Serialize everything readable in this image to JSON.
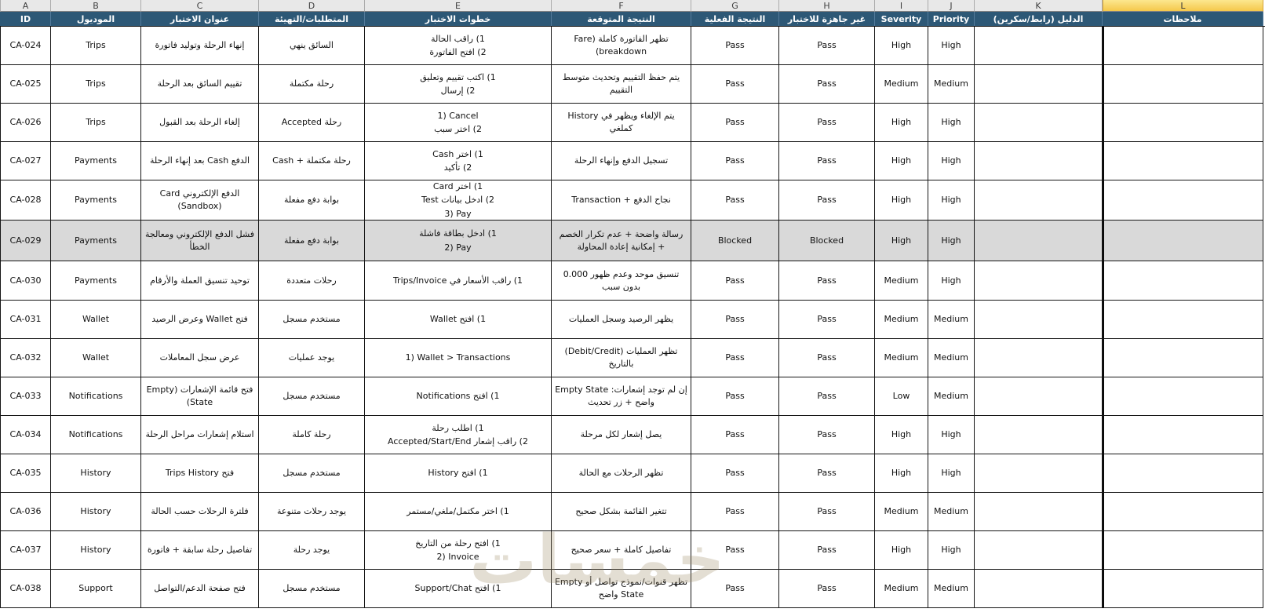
{
  "sheet": {
    "watermark": "خمسات",
    "selected_column_letter": "L",
    "column_letters": [
      "A",
      "B",
      "C",
      "D",
      "E",
      "F",
      "G",
      "H",
      "I",
      "J",
      "K",
      "L"
    ],
    "header_labels": [
      "ID",
      "الموديول",
      "عنوان الاختبار",
      "المتطلبات/التهيئة",
      "خطوات الاختبار",
      "النتيجة المتوقعة",
      "النتيجة الفعلية",
      "غير جاهزة للاختبار",
      "Severity",
      "Priority",
      "الدليل (رابط/سكرين)",
      "ملاحظات"
    ],
    "colors": {
      "header_bg": "#2D5876",
      "header_text": "#FFFFFF",
      "column_letters_bg": "#E8E8E8",
      "selected_column_bg_top": "#FCE78F",
      "selected_column_bg_bottom": "#F5C84B",
      "row_highlight_bg": "#D9D9D9",
      "grid_border": "#161616"
    },
    "rows": [
      {
        "id": "CA-024",
        "module": "Trips",
        "title": "إنهاء الرحلة وتوليد فاتورة",
        "setup": "السائق ينهي",
        "steps": [
          "1) راقب الحالة",
          "2) افتح الفاتورة"
        ],
        "expected": "تظهر الفاتورة كاملة (Fare breakdown)",
        "actual": "Pass",
        "readiness": "Pass",
        "severity": "High",
        "priority": "High",
        "evidence": "",
        "notes": "",
        "highlight": false
      },
      {
        "id": "CA-025",
        "module": "Trips",
        "title": "تقييم السائق بعد الرحلة",
        "setup": "رحلة مكتملة",
        "steps": [
          "1) اكتب تقييم وتعليق",
          "2) إرسال"
        ],
        "expected": "يتم حفظ التقييم وتحديث متوسط التقييم",
        "actual": "Pass",
        "readiness": "Pass",
        "severity": "Medium",
        "priority": "Medium",
        "evidence": "",
        "notes": "",
        "highlight": false
      },
      {
        "id": "CA-026",
        "module": "Trips",
        "title": "إلغاء الرحلة بعد القبول",
        "setup": "رحلة Accepted",
        "steps": [
          "1) Cancel",
          "2) اختر سبب"
        ],
        "expected": "يتم الإلغاء ويظهر في History كملغي",
        "actual": "Pass",
        "readiness": "Pass",
        "severity": "High",
        "priority": "High",
        "evidence": "",
        "notes": "",
        "highlight": false
      },
      {
        "id": "CA-027",
        "module": "Payments",
        "title": "الدفع Cash بعد إنهاء الرحلة",
        "setup": "رحلة مكتملة + Cash",
        "steps": [
          "1) اختر Cash",
          "2) تأكيد"
        ],
        "expected": "تسجيل الدفع وإنهاء الرحلة",
        "actual": "Pass",
        "readiness": "Pass",
        "severity": "High",
        "priority": "High",
        "evidence": "",
        "notes": "",
        "highlight": false
      },
      {
        "id": "CA-028",
        "module": "Payments",
        "title": "الدفع الإلكتروني Card (Sandbox)",
        "setup": "بوابة دفع مفعلة",
        "steps": [
          "1) اختر Card",
          "2) ادخل بيانات Test",
          "3) Pay"
        ],
        "expected": "نجاح الدفع + Transaction",
        "actual": "Pass",
        "readiness": "Pass",
        "severity": "High",
        "priority": "High",
        "evidence": "",
        "notes": "",
        "highlight": false
      },
      {
        "id": "CA-029",
        "module": "Payments",
        "title": "فشل الدفع الإلكتروني ومعالجة الخطأ",
        "setup": "بوابة دفع مفعلة",
        "steps": [
          "1) ادخل بطاقة فاشلة",
          "2) Pay"
        ],
        "expected": "رسالة واضحة + عدم تكرار الخصم + إمكانية إعادة المحاولة",
        "actual": "Blocked",
        "readiness": "Blocked",
        "severity": "High",
        "priority": "High",
        "evidence": "",
        "notes": "",
        "highlight": true
      },
      {
        "id": "CA-030",
        "module": "Payments",
        "title": "توحيد تنسيق العملة والأرقام",
        "setup": "رحلات متعددة",
        "steps": [
          "1) راقب الأسعار في Trips/Invoice"
        ],
        "expected": "تنسيق موحد وعدم ظهور 0.000 بدون سبب",
        "actual": "Pass",
        "readiness": "Pass",
        "severity": "Medium",
        "priority": "High",
        "evidence": "",
        "notes": "",
        "highlight": false
      },
      {
        "id": "CA-031",
        "module": "Wallet",
        "title": "فتح Wallet وعرض الرصيد",
        "setup": "مستخدم مسجل",
        "steps": [
          "1) افتح Wallet"
        ],
        "expected": "يظهر الرصيد وسجل العمليات",
        "actual": "Pass",
        "readiness": "Pass",
        "severity": "Medium",
        "priority": "Medium",
        "evidence": "",
        "notes": "",
        "highlight": false
      },
      {
        "id": "CA-032",
        "module": "Wallet",
        "title": "عرض سجل المعاملات",
        "setup": "يوجد عمليات",
        "steps": [
          "1) Wallet > Transactions"
        ],
        "expected": "تظهر العمليات (Debit/Credit) بالتاريخ",
        "actual": "Pass",
        "readiness": "Pass",
        "severity": "Medium",
        "priority": "Medium",
        "evidence": "",
        "notes": "",
        "highlight": false
      },
      {
        "id": "CA-033",
        "module": "Notifications",
        "title": "فتح قائمة الإشعارات (Empty State)",
        "setup": "مستخدم مسجل",
        "steps": [
          "1) افتح Notifications"
        ],
        "expected": "إن لم توجد إشعارات: Empty State واضح + زر تحديث",
        "actual": "Pass",
        "readiness": "Pass",
        "severity": "Low",
        "priority": "Medium",
        "evidence": "",
        "notes": "",
        "highlight": false
      },
      {
        "id": "CA-034",
        "module": "Notifications",
        "title": "استلام إشعارات مراحل الرحلة",
        "setup": "رحلة كاملة",
        "steps": [
          "1) اطلب رحلة",
          "2) راقب إشعار Accepted/Start/End"
        ],
        "expected": "يصل إشعار لكل مرحلة",
        "actual": "Pass",
        "readiness": "Pass",
        "severity": "High",
        "priority": "High",
        "evidence": "",
        "notes": "",
        "highlight": false
      },
      {
        "id": "CA-035",
        "module": "History",
        "title": "فتح Trips History",
        "setup": "مستخدم مسجل",
        "steps": [
          "1) افتح History"
        ],
        "expected": "تظهر الرحلات مع الحالة",
        "actual": "Pass",
        "readiness": "Pass",
        "severity": "High",
        "priority": "High",
        "evidence": "",
        "notes": "",
        "highlight": false
      },
      {
        "id": "CA-036",
        "module": "History",
        "title": "فلترة الرحلات حسب الحالة",
        "setup": "يوجد رحلات متنوعة",
        "steps": [
          "1) اختر مكتمل/ملغي/مستمر"
        ],
        "expected": "تتغير القائمة بشكل صحيح",
        "actual": "Pass",
        "readiness": "Pass",
        "severity": "Medium",
        "priority": "Medium",
        "evidence": "",
        "notes": "",
        "highlight": false
      },
      {
        "id": "CA-037",
        "module": "History",
        "title": "تفاصيل رحلة سابقة + فاتورة",
        "setup": "يوجد رحلة",
        "steps": [
          "1) افتح رحلة من التاريخ",
          "2) Invoice"
        ],
        "expected": "تفاصيل كاملة + سعر صحيح",
        "actual": "Pass",
        "readiness": "Pass",
        "severity": "High",
        "priority": "High",
        "evidence": "",
        "notes": "",
        "highlight": false
      },
      {
        "id": "CA-038",
        "module": "Support",
        "title": "فتح صفحة الدعم/التواصل",
        "setup": "مستخدم مسجل",
        "steps": [
          "1) افتح Support/Chat"
        ],
        "expected": "تظهر قنوات/نموذج تواصل أو Empty State واضح",
        "actual": "Pass",
        "readiness": "Pass",
        "severity": "Medium",
        "priority": "Medium",
        "evidence": "",
        "notes": "",
        "highlight": false
      }
    ]
  }
}
